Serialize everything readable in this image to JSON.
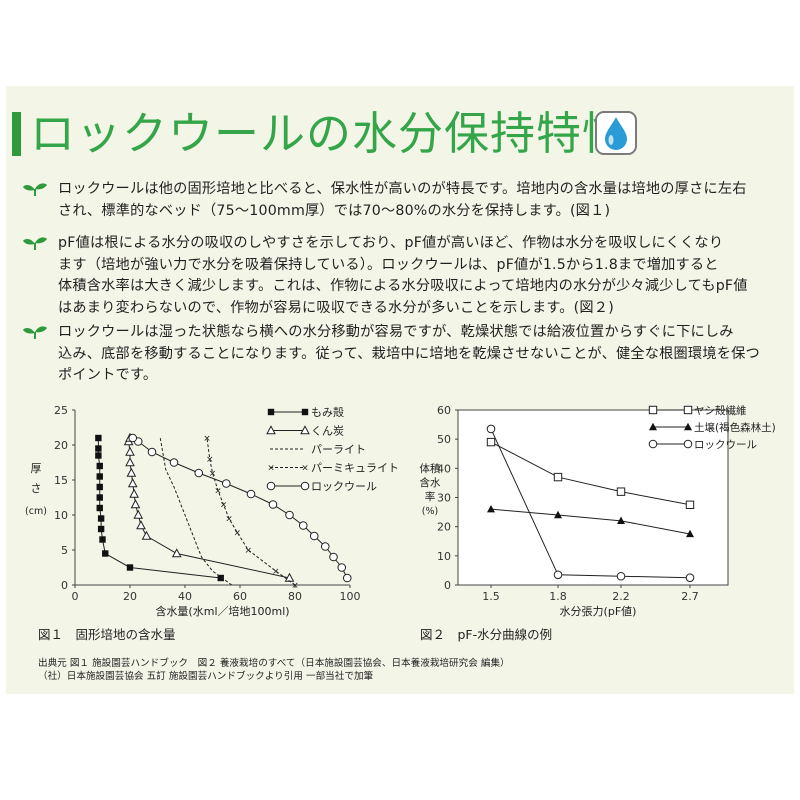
{
  "title": "ロックウールの水分保持特性",
  "paragraphs": [
    {
      "lines": [
        "ロックウールは他の固形培地と比べると、保水性が高いのが特長です。培地内の含水量は培地の厚さに左右",
        "され、標準的なベッド（75～100mm厚）では70～80%の水分を保持します。(図１)"
      ]
    },
    {
      "lines": [
        "pF値は根による水分の吸収のしやすさを示しており、pF値が高いほど、作物は水分を吸収しにくくなり",
        "ます（培地が強い力で水分を吸着保持している）。ロックウールは、pF値が1.5から1.8まで増加すると",
        "体積含水率は大きく減少します。これは、作物による水分吸収によって培地内の水分が少々減少してもpF値",
        "はあまり変わらないので、作物が容易に吸収できる水分が多いことを示します。(図２)"
      ]
    },
    {
      "lines": [
        "ロックウールは湿った状態なら横への水分移動が容易ですが、乾燥状態では給液位置からすぐに下にしみ",
        "込み、底部を移動することになります。従って、栽培中に培地を乾燥させないことが、健全な根圏環境を保つ",
        "ポイントです。"
      ]
    }
  ],
  "chart_data": [
    {
      "type": "line",
      "caption": "図１　固形培地の含水量",
      "xlabel": "含水量(水ml／培地100ml)",
      "ylabel": "厚さ(cm)",
      "xlim": [
        0,
        100
      ],
      "ylim": [
        0,
        25
      ],
      "x_ticks": [
        "0",
        "20",
        "40",
        "60",
        "80",
        "100"
      ],
      "y_ticks": [
        "0",
        "5",
        "10",
        "15",
        "20",
        "25"
      ],
      "series": [
        {
          "name": "もみ殻",
          "marker": "filled-square",
          "line": "solid",
          "x": [
            53,
            20,
            11,
            10,
            9.5,
            9.5,
            9,
            9,
            9,
            9,
            9,
            8.5,
            8.5,
            8.5
          ],
          "y": [
            1,
            2.5,
            4.5,
            6.5,
            8,
            9.5,
            11,
            12.5,
            14,
            15.5,
            17,
            18.5,
            19.5,
            21
          ]
        },
        {
          "name": "くん炭",
          "marker": "open-triangle",
          "line": "solid",
          "x": [
            78,
            37,
            26,
            24,
            23,
            22,
            21.5,
            21,
            20.5,
            20,
            20,
            19.5,
            20
          ],
          "y": [
            1,
            4.5,
            7,
            8.5,
            10,
            11.5,
            13,
            14.5,
            16,
            17.5,
            19,
            20.5,
            21
          ]
        },
        {
          "name": "パーライト",
          "line": "dashed",
          "x": [
            57,
            50,
            46,
            44,
            42,
            40,
            38,
            36,
            33,
            31
          ],
          "y": [
            0,
            2,
            4,
            6,
            8,
            10,
            12,
            14,
            16.5,
            21
          ]
        },
        {
          "name": "パーミキュライト",
          "marker": "x",
          "line": "dashed",
          "x": [
            80,
            73,
            63,
            59,
            56,
            54,
            52,
            50,
            49,
            48
          ],
          "y": [
            0,
            2,
            5,
            7.5,
            9.5,
            11.5,
            13.5,
            16,
            18,
            21
          ]
        },
        {
          "name": "ロックウール",
          "marker": "open-circle",
          "line": "solid",
          "x": [
            99,
            97,
            94,
            91,
            87,
            83,
            78,
            72,
            64,
            55,
            45,
            36,
            28,
            23,
            21
          ],
          "y": [
            1,
            2.5,
            4,
            5.5,
            7,
            8.5,
            10,
            11.5,
            13,
            14.5,
            16,
            17.5,
            19,
            20.5,
            21
          ]
        }
      ]
    },
    {
      "type": "line",
      "caption": "図２　pF-水分曲線の例",
      "xlabel": "水分張力(pF値)",
      "ylabel": "体積含水率(%)",
      "categories": [
        "1.5",
        "1.8",
        "2.2",
        "2.7"
      ],
      "ylim": [
        0,
        60
      ],
      "y_ticks": [
        "0",
        "10",
        "20",
        "30",
        "40",
        "50",
        "60"
      ],
      "series": [
        {
          "name": "ヤシ殻繊維",
          "marker": "open-square",
          "x": [
            1.5,
            1.8,
            2.2,
            2.7
          ],
          "y": [
            49,
            37,
            32,
            27.5
          ]
        },
        {
          "name": "土壌(褐色森林土)",
          "marker": "filled-triangle",
          "x": [
            1.5,
            1.8,
            2.2,
            2.7
          ],
          "y": [
            26,
            24,
            22,
            17.5
          ]
        },
        {
          "name": "ロックウール",
          "marker": "open-circle",
          "x": [
            1.5,
            1.8,
            2.2,
            2.7
          ],
          "y": [
            53.5,
            3.5,
            3,
            2.5
          ]
        }
      ]
    }
  ],
  "source": {
    "line1": "出典元  図１  施設園芸ハンドブック　図２  養液栽培のすべて（日本施設園芸協会、日本養液栽培研究会 編集）",
    "line2": "（社）日本施設園芸協会  五訂  施設園芸ハンドブックより引用  一部当社で加筆"
  },
  "colors": {
    "title_green": "#34a548",
    "bullet_green": "#2e9a3c",
    "panel_bg": "#f3f6e7",
    "drop_blue": "#2a9bd4"
  },
  "icons": {
    "title": "water-drop-icon",
    "bullet": "sprout-icon"
  }
}
